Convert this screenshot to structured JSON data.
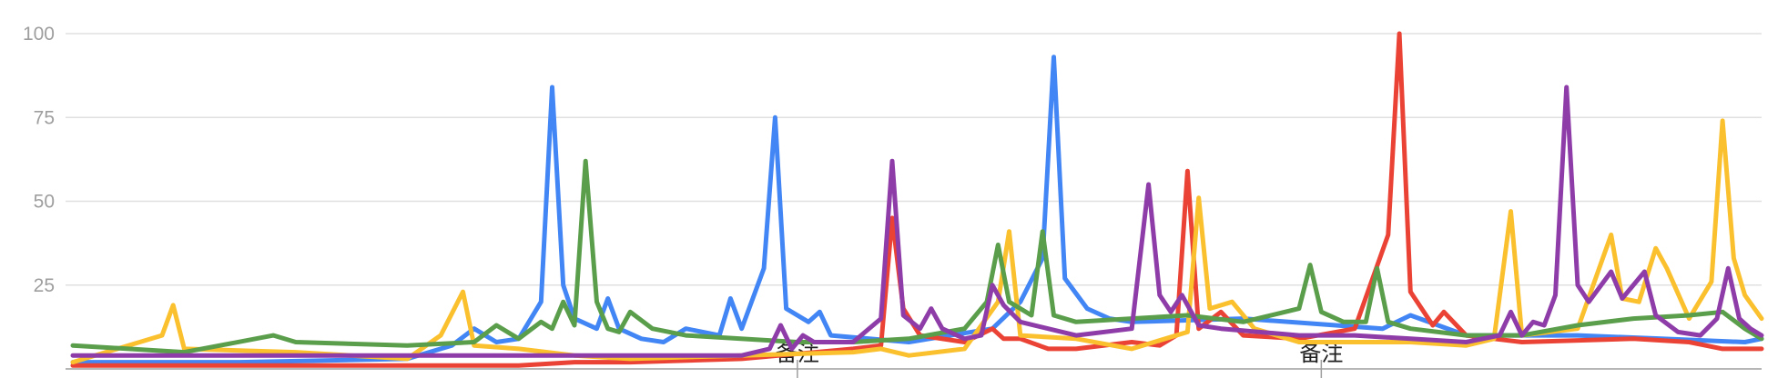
{
  "chart_data": {
    "type": "line",
    "title": "",
    "xlabel": "",
    "ylabel": "",
    "ylim": [
      0,
      100
    ],
    "yticks": [
      25,
      50,
      75,
      100
    ],
    "grid": true,
    "annotations": [
      {
        "text": "备注",
        "x": 130
      },
      {
        "text": "备注",
        "x": 224
      }
    ],
    "series": [
      {
        "color": "#4285f4",
        "points": [
          [
            0,
            2
          ],
          [
            30,
            2
          ],
          [
            60,
            3
          ],
          [
            68,
            7
          ],
          [
            72,
            12
          ],
          [
            76,
            8
          ],
          [
            80,
            9
          ],
          [
            84,
            20
          ],
          [
            86,
            84
          ],
          [
            88,
            25
          ],
          [
            90,
            15
          ],
          [
            94,
            12
          ],
          [
            96,
            21
          ],
          [
            98,
            12
          ],
          [
            102,
            9
          ],
          [
            106,
            8
          ],
          [
            110,
            12
          ],
          [
            116,
            10
          ],
          [
            118,
            21
          ],
          [
            120,
            12
          ],
          [
            124,
            30
          ],
          [
            126,
            75
          ],
          [
            128,
            18
          ],
          [
            132,
            14
          ],
          [
            134,
            17
          ],
          [
            136,
            10
          ],
          [
            150,
            8
          ],
          [
            165,
            12
          ],
          [
            170,
            20
          ],
          [
            174,
            33
          ],
          [
            176,
            93
          ],
          [
            178,
            27
          ],
          [
            182,
            18
          ],
          [
            186,
            15
          ],
          [
            190,
            14
          ],
          [
            210,
            15
          ],
          [
            235,
            12
          ],
          [
            240,
            16
          ],
          [
            250,
            10
          ],
          [
            260,
            10
          ],
          [
            270,
            10
          ],
          [
            285,
            9
          ],
          [
            300,
            8
          ],
          [
            303,
            9
          ]
        ]
      },
      {
        "color": "#ea4335",
        "points": [
          [
            0,
            1
          ],
          [
            60,
            1
          ],
          [
            80,
            1
          ],
          [
            90,
            2
          ],
          [
            100,
            2
          ],
          [
            120,
            3
          ],
          [
            140,
            6
          ],
          [
            145,
            7
          ],
          [
            147,
            45
          ],
          [
            149,
            18
          ],
          [
            152,
            10
          ],
          [
            160,
            8
          ],
          [
            165,
            12
          ],
          [
            167,
            9
          ],
          [
            170,
            9
          ],
          [
            175,
            6
          ],
          [
            180,
            6
          ],
          [
            190,
            8
          ],
          [
            195,
            7
          ],
          [
            198,
            10
          ],
          [
            200,
            59
          ],
          [
            202,
            12
          ],
          [
            206,
            17
          ],
          [
            210,
            10
          ],
          [
            220,
            9
          ],
          [
            230,
            12
          ],
          [
            236,
            40
          ],
          [
            238,
            100
          ],
          [
            240,
            23
          ],
          [
            244,
            13
          ],
          [
            246,
            17
          ],
          [
            250,
            10
          ],
          [
            260,
            8
          ],
          [
            280,
            9
          ],
          [
            290,
            8
          ],
          [
            296,
            6
          ],
          [
            303,
            6
          ]
        ]
      },
      {
        "color": "#fbc02d",
        "points": [
          [
            0,
            2
          ],
          [
            16,
            10
          ],
          [
            18,
            19
          ],
          [
            20,
            6
          ],
          [
            40,
            5
          ],
          [
            60,
            3
          ],
          [
            66,
            10
          ],
          [
            70,
            23
          ],
          [
            72,
            7
          ],
          [
            80,
            6
          ],
          [
            90,
            4
          ],
          [
            100,
            3
          ],
          [
            120,
            4
          ],
          [
            140,
            5
          ],
          [
            145,
            6
          ],
          [
            150,
            4
          ],
          [
            160,
            6
          ],
          [
            166,
            20
          ],
          [
            168,
            41
          ],
          [
            170,
            10
          ],
          [
            180,
            9
          ],
          [
            190,
            6
          ],
          [
            196,
            9
          ],
          [
            200,
            11
          ],
          [
            202,
            51
          ],
          [
            204,
            18
          ],
          [
            208,
            20
          ],
          [
            212,
            12
          ],
          [
            220,
            8
          ],
          [
            240,
            8
          ],
          [
            250,
            7
          ],
          [
            255,
            9
          ],
          [
            258,
            47
          ],
          [
            260,
            10
          ],
          [
            270,
            12
          ],
          [
            276,
            40
          ],
          [
            278,
            21
          ],
          [
            281,
            20
          ],
          [
            284,
            36
          ],
          [
            286,
            30
          ],
          [
            290,
            15
          ],
          [
            294,
            26
          ],
          [
            296,
            74
          ],
          [
            298,
            33
          ],
          [
            300,
            22
          ],
          [
            303,
            15
          ]
        ]
      },
      {
        "color": "#5a9e4b",
        "points": [
          [
            0,
            7
          ],
          [
            10,
            6
          ],
          [
            20,
            5
          ],
          [
            36,
            10
          ],
          [
            40,
            8
          ],
          [
            60,
            7
          ],
          [
            72,
            8
          ],
          [
            76,
            13
          ],
          [
            80,
            9
          ],
          [
            84,
            14
          ],
          [
            86,
            12
          ],
          [
            88,
            20
          ],
          [
            90,
            13
          ],
          [
            92,
            62
          ],
          [
            94,
            20
          ],
          [
            96,
            12
          ],
          [
            98,
            11
          ],
          [
            100,
            17
          ],
          [
            104,
            12
          ],
          [
            110,
            10
          ],
          [
            130,
            8
          ],
          [
            140,
            8
          ],
          [
            150,
            9
          ],
          [
            160,
            12
          ],
          [
            164,
            20
          ],
          [
            166,
            37
          ],
          [
            168,
            20
          ],
          [
            172,
            16
          ],
          [
            174,
            41
          ],
          [
            176,
            16
          ],
          [
            180,
            14
          ],
          [
            190,
            15
          ],
          [
            200,
            16
          ],
          [
            210,
            14
          ],
          [
            220,
            18
          ],
          [
            222,
            31
          ],
          [
            224,
            17
          ],
          [
            228,
            14
          ],
          [
            232,
            14
          ],
          [
            234,
            30
          ],
          [
            236,
            14
          ],
          [
            240,
            12
          ],
          [
            250,
            10
          ],
          [
            260,
            10
          ],
          [
            270,
            13
          ],
          [
            280,
            15
          ],
          [
            290,
            16
          ],
          [
            296,
            17
          ],
          [
            300,
            12
          ],
          [
            303,
            9
          ]
        ]
      },
      {
        "color": "#8e3ca8",
        "points": [
          [
            0,
            4
          ],
          [
            40,
            4
          ],
          [
            60,
            4
          ],
          [
            80,
            4
          ],
          [
            90,
            4
          ],
          [
            100,
            4
          ],
          [
            120,
            4
          ],
          [
            125,
            6
          ],
          [
            127,
            13
          ],
          [
            129,
            6
          ],
          [
            131,
            10
          ],
          [
            133,
            8
          ],
          [
            140,
            8
          ],
          [
            145,
            15
          ],
          [
            147,
            62
          ],
          [
            149,
            16
          ],
          [
            152,
            12
          ],
          [
            154,
            18
          ],
          [
            156,
            12
          ],
          [
            160,
            9
          ],
          [
            163,
            10
          ],
          [
            165,
            25
          ],
          [
            167,
            19
          ],
          [
            170,
            14
          ],
          [
            180,
            10
          ],
          [
            190,
            12
          ],
          [
            193,
            55
          ],
          [
            195,
            22
          ],
          [
            197,
            17
          ],
          [
            199,
            22
          ],
          [
            202,
            13
          ],
          [
            206,
            12
          ],
          [
            220,
            10
          ],
          [
            230,
            10
          ],
          [
            240,
            9
          ],
          [
            250,
            8
          ],
          [
            256,
            10
          ],
          [
            258,
            17
          ],
          [
            260,
            10
          ],
          [
            262,
            14
          ],
          [
            264,
            13
          ],
          [
            266,
            22
          ],
          [
            268,
            84
          ],
          [
            270,
            25
          ],
          [
            272,
            20
          ],
          [
            276,
            29
          ],
          [
            278,
            21
          ],
          [
            282,
            29
          ],
          [
            284,
            16
          ],
          [
            288,
            11
          ],
          [
            292,
            10
          ],
          [
            295,
            15
          ],
          [
            297,
            30
          ],
          [
            299,
            15
          ],
          [
            301,
            12
          ],
          [
            303,
            10
          ]
        ]
      }
    ]
  }
}
